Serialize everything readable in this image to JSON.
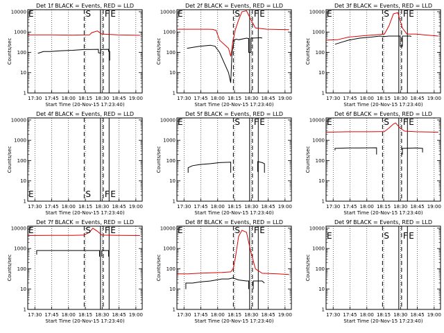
{
  "figure": {
    "xlabel": "Start Time (20-Nov-15 17:23:40)",
    "ylabel": "Counts/sec",
    "x_ticks": [
      "17:30",
      "17:45",
      "18:00",
      "18:15",
      "18:30",
      "18:45",
      "19:00"
    ],
    "x_tick_minutes": [
      6.33,
      21.33,
      36.33,
      51.33,
      66.33,
      81.33,
      96.33
    ],
    "xlim_minutes": [
      0,
      102
    ],
    "y_ticks_log": [
      "1",
      "10",
      "100",
      "1000",
      "10000"
    ],
    "ylim_log": [
      0,
      4.1
    ],
    "events_color": "#000000",
    "lld_color": "#e00000",
    "markers": [
      {
        "label": "E",
        "minute": 0,
        "style": "edge"
      },
      {
        "label": "S",
        "minute": 50.3,
        "style": "dashed"
      },
      {
        "label": "F",
        "minute": 64.8,
        "style": "solid"
      },
      {
        "label": "F",
        "minute": 67.3,
        "style": "dashed"
      },
      {
        "label": "E",
        "minute": 72.5,
        "style": "solid"
      }
    ]
  },
  "chart_data": [
    {
      "type": "line",
      "title": "Det 1f BLACK = Events, RED = LLD",
      "flag_labels": [
        "E",
        "S",
        "F",
        "E"
      ],
      "series": [
        {
          "name": "Events",
          "color": "#000000",
          "segments": [
            [
              [
                9,
                1.95
              ],
              [
                14,
                2.04
              ],
              [
                20,
                2.04
              ],
              [
                30,
                2.08
              ],
              [
                40,
                2.1
              ],
              [
                50,
                2.14
              ],
              [
                63,
                2.15
              ],
              [
                63,
                1.98
              ],
              [
                65,
                1.96
              ],
              [
                65,
                2.14
              ],
              [
                72,
                2.15
              ],
              [
                72,
                2.05
              ],
              [
                73,
                2.05
              ],
              [
                73,
                1.6
              ]
            ]
          ]
        },
        {
          "name": "LLD",
          "color": "#e00000",
          "segments": [
            [
              [
                0,
                2.86
              ],
              [
                20,
                2.86
              ],
              [
                40,
                2.85
              ],
              [
                55,
                2.86
              ],
              [
                57,
                2.97
              ],
              [
                62,
                3.05
              ],
              [
                64,
                2.98
              ],
              [
                66,
                2.9
              ],
              [
                80,
                2.86
              ],
              [
                100,
                2.84
              ]
            ]
          ]
        }
      ]
    },
    {
      "type": "line",
      "title": "Det 2f BLACK = Events, RED = LLD",
      "flag_labels": [
        "E",
        "S",
        "F",
        "E"
      ],
      "series": [
        {
          "name": "Events",
          "color": "#000000",
          "segments": [
            [
              [
                9,
                2.2
              ],
              [
                20,
                2.3
              ],
              [
                30,
                2.35
              ],
              [
                34,
                2.3
              ],
              [
                38,
                2.0
              ],
              [
                42,
                1.5
              ],
              [
                46,
                1.0
              ],
              [
                48,
                0.5
              ],
              [
                49,
                1.9
              ],
              [
                51,
                2.6
              ],
              [
                53,
                2.65
              ],
              [
                55,
                2.62
              ],
              [
                62,
                2.7
              ],
              [
                64,
                2.68
              ],
              [
                64,
                2.0
              ],
              [
                66,
                2.0
              ],
              [
                66,
                2.7
              ],
              [
                75,
                2.72
              ],
              [
                76,
                2.7
              ]
            ]
          ]
        },
        {
          "name": "LLD",
          "color": "#e00000",
          "segments": [
            [
              [
                0,
                3.14
              ],
              [
                28,
                3.14
              ],
              [
                32,
                3.13
              ],
              [
                35,
                3.08
              ],
              [
                38,
                2.6
              ],
              [
                42,
                2.4
              ],
              [
                46,
                2.2
              ],
              [
                48,
                1.8
              ],
              [
                50,
                2.6
              ],
              [
                52,
                3.1
              ],
              [
                55,
                3.6
              ],
              [
                58,
                4.0
              ],
              [
                62,
                4.05
              ],
              [
                66,
                3.6
              ],
              [
                70,
                3.2
              ],
              [
                80,
                3.14
              ],
              [
                100,
                3.12
              ]
            ]
          ]
        }
      ]
    },
    {
      "type": "line",
      "title": "Det 3f BLACK = Events, RED = LLD",
      "flag_labels": [
        "E",
        "S",
        "F",
        "E"
      ],
      "series": [
        {
          "name": "Events",
          "color": "#000000",
          "segments": [
            [
              [
                8,
                2.4
              ],
              [
                14,
                2.5
              ],
              [
                20,
                2.6
              ],
              [
                30,
                2.7
              ],
              [
                40,
                2.75
              ],
              [
                48,
                2.8
              ],
              [
                52,
                2.78
              ],
              [
                56,
                2.8
              ],
              [
                66,
                2.8
              ],
              [
                66,
                2.3
              ],
              [
                68,
                2.3
              ],
              [
                68,
                2.8
              ],
              [
                75,
                2.8
              ],
              [
                76,
                2.78
              ]
            ]
          ]
        },
        {
          "name": "LLD",
          "color": "#e00000",
          "segments": [
            [
              [
                0,
                2.6
              ],
              [
                10,
                2.62
              ],
              [
                20,
                2.75
              ],
              [
                30,
                2.8
              ],
              [
                40,
                2.85
              ],
              [
                48,
                2.88
              ],
              [
                52,
                2.9
              ],
              [
                56,
                3.3
              ],
              [
                60,
                3.9
              ],
              [
                64,
                3.95
              ],
              [
                68,
                3.2
              ],
              [
                72,
                2.9
              ],
              [
                80,
                2.9
              ],
              [
                90,
                2.85
              ],
              [
                100,
                2.8
              ]
            ]
          ]
        }
      ]
    },
    {
      "type": "line",
      "title": "Det 4f BLACK = Events, RED = LLD",
      "flag_labels": [
        "E",
        "S",
        "F",
        "E"
      ],
      "series": []
    },
    {
      "type": "line",
      "title": "Det 5f BLACK = Events, RED = LLD",
      "flag_labels": [
        "E",
        "S",
        "F",
        "E"
      ],
      "series": [
        {
          "name": "Events",
          "color": "#000000",
          "segments": [
            [
              [
                10,
                1.4
              ],
              [
                10,
                1.65
              ],
              [
                14,
                1.75
              ],
              [
                20,
                1.8
              ],
              [
                30,
                1.85
              ],
              [
                38,
                1.9
              ],
              [
                48,
                1.92
              ],
              [
                48,
                1.4
              ]
            ],
            [
              [
                72,
                1.45
              ],
              [
                72,
                1.95
              ],
              [
                76,
                1.9
              ],
              [
                78,
                1.85
              ],
              [
                78,
                1.4
              ]
            ]
          ]
        },
        {
          "name": "LLD",
          "color": "#e00000",
          "segments": []
        }
      ]
    },
    {
      "type": "line",
      "title": "Det 6f BLACK = Events, RED = LLD",
      "flag_labels": [
        "E",
        "S",
        "F",
        "E"
      ],
      "series": [
        {
          "name": "Events",
          "color": "#000000",
          "segments": [
            [
              [
                8,
                2.5
              ],
              [
                8,
                2.6
              ],
              [
                20,
                2.62
              ],
              [
                30,
                2.62
              ],
              [
                45,
                2.63
              ],
              [
                45,
                2.3
              ]
            ],
            [
              [
                68,
                2.3
              ],
              [
                68,
                2.6
              ],
              [
                80,
                2.62
              ],
              [
                86,
                2.6
              ],
              [
                86,
                2.4
              ]
            ]
          ]
        },
        {
          "name": "LLD",
          "color": "#e00000",
          "segments": [
            [
              [
                0,
                3.4
              ],
              [
                20,
                3.42
              ],
              [
                40,
                3.42
              ],
              [
                52,
                3.43
              ],
              [
                56,
                3.6
              ],
              [
                60,
                3.8
              ],
              [
                62,
                3.85
              ],
              [
                66,
                3.6
              ],
              [
                70,
                3.45
              ],
              [
                80,
                3.42
              ],
              [
                100,
                3.4
              ]
            ]
          ]
        }
      ]
    },
    {
      "type": "line",
      "title": "Det 7f BLACK = Events, RED = LLD",
      "flag_labels": [
        "E",
        "S",
        "F",
        "E"
      ],
      "series": [
        {
          "name": "Events",
          "color": "#000000",
          "segments": [
            [
              [
                8,
                2.7
              ],
              [
                8,
                2.9
              ],
              [
                20,
                2.9
              ],
              [
                35,
                2.9
              ],
              [
                50,
                2.9
              ],
              [
                64,
                2.9
              ],
              [
                64,
                2.6
              ]
            ],
            [
              [
                66,
                2.6
              ],
              [
                66,
                2.9
              ],
              [
                72,
                2.9
              ],
              [
                72,
                2.6
              ]
            ]
          ]
        },
        {
          "name": "LLD",
          "color": "#e00000",
          "segments": [
            [
              [
                0,
                3.64
              ],
              [
                20,
                3.65
              ],
              [
                40,
                3.65
              ],
              [
                50,
                3.66
              ],
              [
                55,
                3.8
              ],
              [
                58,
                4.0
              ],
              [
                62,
                3.85
              ],
              [
                66,
                3.66
              ],
              [
                80,
                3.65
              ],
              [
                100,
                3.64
              ]
            ]
          ]
        }
      ]
    },
    {
      "type": "line",
      "title": "Det 8f BLACK = Events, RED = LLD",
      "flag_labels": [
        "E",
        "S",
        "F",
        "E"
      ],
      "series": [
        {
          "name": "Events",
          "color": "#000000",
          "segments": [
            [
              [
                8,
                1.0
              ],
              [
                8,
                1.3
              ],
              [
                14,
                1.3
              ],
              [
                20,
                1.35
              ],
              [
                30,
                1.4
              ],
              [
                40,
                1.5
              ],
              [
                46,
                1.5
              ],
              [
                50,
                1.55
              ],
              [
                55,
                1.45
              ],
              [
                62,
                1.4
              ],
              [
                64,
                1.4
              ],
              [
                64,
                1.0
              ]
            ],
            [
              [
                68,
                1.0
              ],
              [
                68,
                1.4
              ],
              [
                76,
                1.4
              ],
              [
                78,
                1.3
              ]
            ]
          ]
        },
        {
          "name": "LLD",
          "color": "#e00000",
          "segments": [
            [
              [
                0,
                1.75
              ],
              [
                10,
                1.75
              ],
              [
                20,
                1.78
              ],
              [
                30,
                1.8
              ],
              [
                40,
                1.82
              ],
              [
                48,
                1.85
              ],
              [
                50,
                2.0
              ],
              [
                52,
                2.5
              ],
              [
                55,
                3.6
              ],
              [
                58,
                3.9
              ],
              [
                62,
                3.8
              ],
              [
                66,
                2.8
              ],
              [
                70,
                2.0
              ],
              [
                76,
                1.78
              ],
              [
                90,
                1.75
              ],
              [
                100,
                1.72
              ]
            ]
          ]
        }
      ]
    },
    {
      "type": "line",
      "title": "Det 9f BLACK = Events, RED = LLD",
      "flag_labels": [
        "E",
        "S",
        "F",
        "E"
      ],
      "series": []
    }
  ]
}
